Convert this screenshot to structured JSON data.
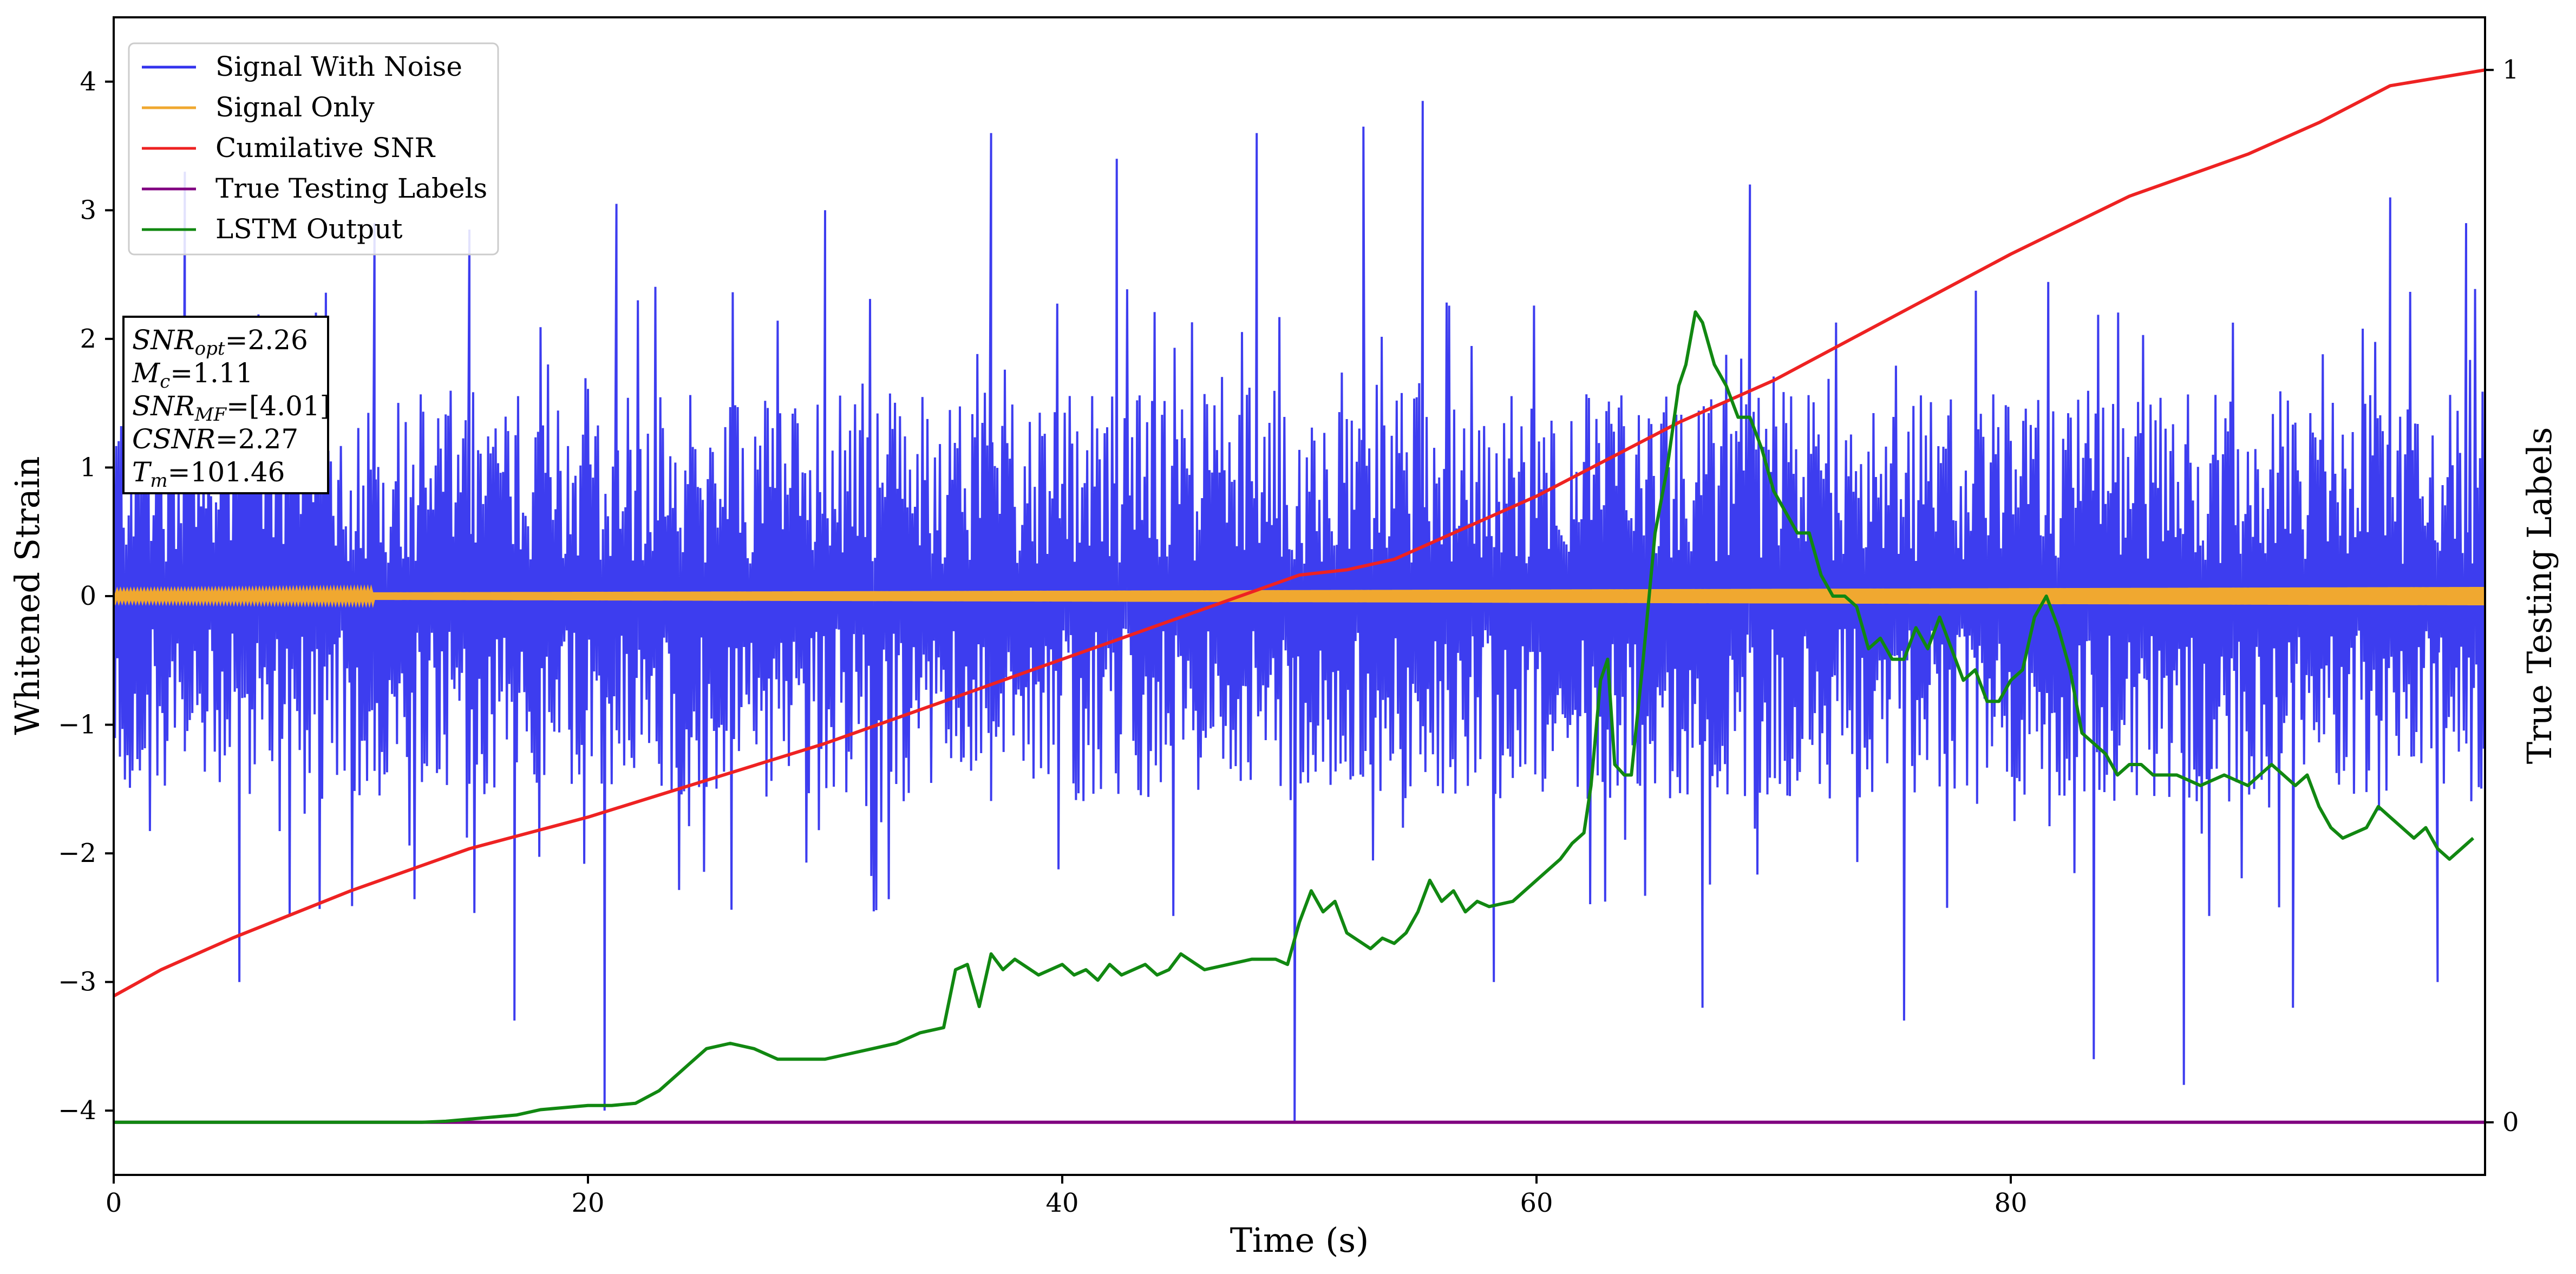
{
  "chart_data": {
    "type": "line",
    "xlabel": "Time (s)",
    "ylabel": "Whitened Strain",
    "ylabel_right": "True Testing Labels",
    "xlim": [
      0,
      100
    ],
    "ylim": [
      -4.5,
      4.5
    ],
    "ylim_right": [
      -0.05,
      1.05
    ],
    "x_ticks": [
      0,
      20,
      40,
      60,
      80
    ],
    "y_ticks": [
      -4,
      -3,
      -2,
      -1,
      0,
      1,
      2,
      3,
      4
    ],
    "y_ticks_right": [
      0,
      1
    ],
    "grid": false,
    "legend_position": "top-left",
    "colors": {
      "signal_with_noise": "#3333ee",
      "signal_only": "#f0a830",
      "cumulative_snr": "#ee2222",
      "true_labels": "#800080",
      "lstm_output": "#118811"
    },
    "annotation": {
      "lines": [
        {
          "var": "SNR",
          "sub": "opt",
          "value": "=2.26"
        },
        {
          "var": "M",
          "sub": "c",
          "value": "=1.11"
        },
        {
          "var": "SNR",
          "sub": "MF",
          "value": "=[4.01]"
        },
        {
          "var": "CSNR",
          "sub": "",
          "value": "=2.27"
        },
        {
          "var": "T",
          "sub": "m",
          "value": "=101.46"
        }
      ]
    },
    "series": [
      {
        "name": "Signal With Noise",
        "axis": "left",
        "noise_envelope": {
          "typical_low": -1.6,
          "typical_high": 1.6,
          "min": -4.1,
          "max": 3.85
        },
        "spikes": [
          {
            "x": 3.0,
            "y": 3.3
          },
          {
            "x": 5.3,
            "y": -3.0
          },
          {
            "x": 11.0,
            "y": 2.9
          },
          {
            "x": 15.0,
            "y": 2.85
          },
          {
            "x": 16.9,
            "y": -3.3
          },
          {
            "x": 20.7,
            "y": -4.0
          },
          {
            "x": 21.2,
            "y": 3.05
          },
          {
            "x": 30.0,
            "y": 3.0
          },
          {
            "x": 37.0,
            "y": 3.6
          },
          {
            "x": 42.3,
            "y": 3.4
          },
          {
            "x": 48.2,
            "y": 3.6
          },
          {
            "x": 49.8,
            "y": -4.1
          },
          {
            "x": 52.7,
            "y": 3.65
          },
          {
            "x": 55.2,
            "y": 3.85
          },
          {
            "x": 58.2,
            "y": -3.0
          },
          {
            "x": 67.0,
            "y": -3.2
          },
          {
            "x": 69.0,
            "y": 3.2
          },
          {
            "x": 75.5,
            "y": -3.3
          },
          {
            "x": 83.5,
            "y": -3.6
          },
          {
            "x": 87.3,
            "y": -3.8
          },
          {
            "x": 91.9,
            "y": -3.2
          },
          {
            "x": 96.0,
            "y": 3.1
          },
          {
            "x": 98.0,
            "y": -3.0
          },
          {
            "x": 99.2,
            "y": 2.9
          }
        ]
      },
      {
        "name": "Signal Only",
        "axis": "left",
        "amplitude_start": 0.02,
        "amplitude_end": 0.07
      },
      {
        "name": "Cumilative SNR",
        "axis": "right",
        "x": [
          0,
          2,
          5,
          10,
          15,
          20,
          25,
          30,
          35,
          40,
          45,
          50,
          52,
          54,
          57,
          60,
          63,
          66,
          70,
          75,
          80,
          85,
          90,
          93,
          96,
          100
        ],
        "y": [
          0.12,
          0.145,
          0.175,
          0.22,
          0.26,
          0.29,
          0.325,
          0.36,
          0.4,
          0.44,
          0.48,
          0.52,
          0.525,
          0.535,
          0.565,
          0.595,
          0.63,
          0.665,
          0.705,
          0.765,
          0.825,
          0.88,
          0.92,
          0.95,
          0.985,
          1.0
        ]
      },
      {
        "name": "True Testing Labels",
        "axis": "right",
        "x": [
          0,
          100
        ],
        "y": [
          0,
          0
        ]
      },
      {
        "name": "LSTM Output",
        "axis": "right",
        "x": [
          0,
          13,
          14,
          15,
          16,
          17,
          18,
          19,
          20,
          21,
          22,
          23,
          24,
          25,
          26,
          27,
          28,
          29,
          30,
          31,
          32,
          33,
          34,
          35,
          35.5,
          36,
          36.5,
          37,
          37.5,
          38,
          39,
          40,
          40.5,
          41,
          41.5,
          42,
          42.5,
          43,
          43.5,
          44,
          44.5,
          45,
          46,
          47,
          48,
          49,
          49.5,
          50,
          50.5,
          51,
          51.5,
          52,
          53,
          53.5,
          54,
          54.5,
          55,
          55.5,
          56,
          56.5,
          57,
          57.5,
          58,
          59,
          60,
          61,
          61.5,
          62,
          62.3,
          62.7,
          63,
          63.3,
          63.7,
          64,
          64.5,
          65,
          65.5,
          66,
          66.3,
          66.7,
          67,
          67.5,
          68,
          68.5,
          69,
          69.5,
          70,
          70.5,
          71,
          71.5,
          72,
          72.5,
          73,
          73.5,
          74,
          74.5,
          75,
          75.5,
          76,
          76.5,
          77,
          77.5,
          78,
          78.5,
          79,
          79.5,
          80,
          80.5,
          81,
          81.5,
          82,
          82.5,
          83,
          83.5,
          84,
          84.5,
          85,
          85.5,
          86,
          87,
          88,
          89,
          90,
          90.5,
          91,
          91.5,
          92,
          92.5,
          93,
          93.5,
          94,
          95,
          95.5,
          96,
          96.5,
          97,
          97.5,
          98,
          98.5,
          99,
          99.5
        ],
        "y": [
          0,
          0,
          0.001,
          0.003,
          0.005,
          0.007,
          0.012,
          0.014,
          0.016,
          0.016,
          0.018,
          0.03,
          0.05,
          0.07,
          0.075,
          0.07,
          0.06,
          0.06,
          0.06,
          0.065,
          0.07,
          0.075,
          0.085,
          0.09,
          0.145,
          0.15,
          0.11,
          0.16,
          0.145,
          0.155,
          0.14,
          0.15,
          0.14,
          0.145,
          0.135,
          0.15,
          0.14,
          0.145,
          0.15,
          0.14,
          0.145,
          0.16,
          0.145,
          0.15,
          0.155,
          0.155,
          0.15,
          0.19,
          0.22,
          0.2,
          0.21,
          0.18,
          0.165,
          0.175,
          0.17,
          0.18,
          0.2,
          0.23,
          0.21,
          0.22,
          0.2,
          0.21,
          0.205,
          0.21,
          0.23,
          0.25,
          0.265,
          0.275,
          0.32,
          0.42,
          0.44,
          0.34,
          0.33,
          0.33,
          0.44,
          0.56,
          0.62,
          0.7,
          0.72,
          0.77,
          0.76,
          0.72,
          0.7,
          0.67,
          0.67,
          0.64,
          0.6,
          0.58,
          0.56,
          0.56,
          0.52,
          0.5,
          0.5,
          0.49,
          0.45,
          0.46,
          0.44,
          0.44,
          0.47,
          0.45,
          0.48,
          0.45,
          0.42,
          0.43,
          0.4,
          0.4,
          0.42,
          0.43,
          0.48,
          0.5,
          0.47,
          0.43,
          0.37,
          0.36,
          0.35,
          0.33,
          0.34,
          0.34,
          0.33,
          0.33,
          0.32,
          0.33,
          0.32,
          0.33,
          0.34,
          0.33,
          0.32,
          0.33,
          0.3,
          0.28,
          0.27,
          0.28,
          0.3,
          0.29,
          0.28,
          0.27,
          0.28,
          0.26,
          0.25,
          0.26,
          0.27
        ]
      }
    ]
  }
}
